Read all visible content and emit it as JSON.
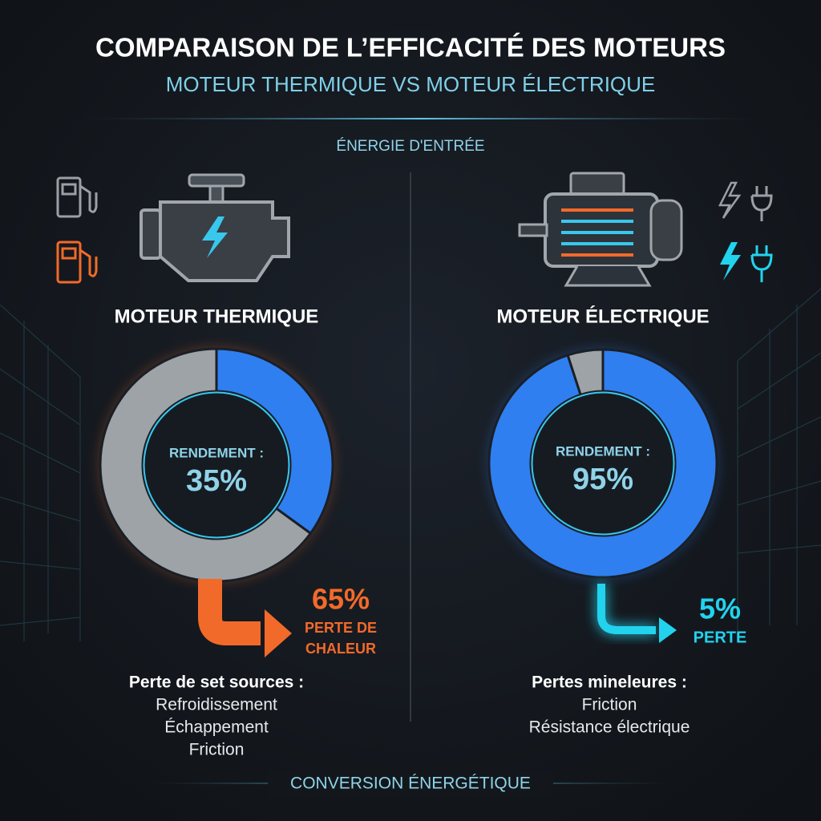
{
  "header": {
    "title": "COMPARAISON DE L’EFFICACITÉ DES MOTEURS",
    "subtitle": "MOTEUR THERMIQUE VS MOTEUR ÉLECTRIQUE"
  },
  "section_label": "ÉNERGIE D'ENTRÉE",
  "footer": "CONVERSION ÉNERGÉTIQUE",
  "chart_data": [
    {
      "type": "pie",
      "title": "MOTEUR THERMIQUE",
      "center_label": "RENDEMENT :",
      "values": [
        35,
        65
      ],
      "value_labels": [
        "35%",
        "65%"
      ],
      "colors": [
        "#2f7ff0",
        "#9ea3a8"
      ],
      "loss_color": "#f26a2a",
      "loss_caption": [
        "PERTE DE",
        "CHALEUR"
      ],
      "loss_sources": {
        "heading": "Perte de set sources :",
        "items": [
          "Refroidissement",
          "Échappement",
          "Friction"
        ]
      }
    },
    {
      "type": "pie",
      "title": "MOTEUR ÉLECTRIQUE",
      "center_label": "RENDEMENT :",
      "values": [
        95,
        5
      ],
      "value_labels": [
        "95%",
        "5%"
      ],
      "colors": [
        "#2f7ff0",
        "#9ea3a8"
      ],
      "loss_color": "#22d3ee",
      "loss_caption": [
        "PERTE"
      ],
      "loss_sources": {
        "heading": "Pertes mineleures :",
        "items": [
          "Friction",
          "Résistance électrique"
        ]
      }
    }
  ]
}
